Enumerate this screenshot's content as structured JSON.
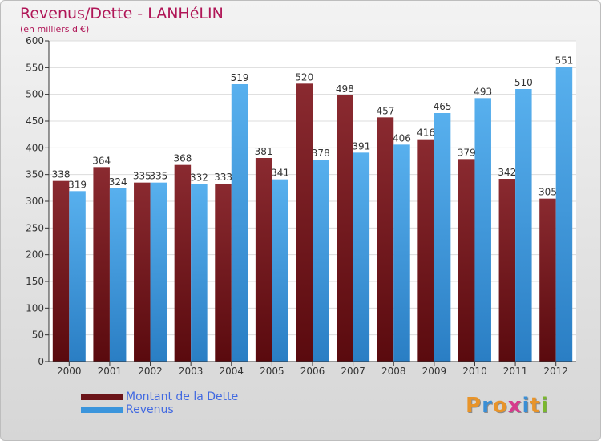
{
  "header": {
    "title": "Revenus/Dette - LANHéLIN",
    "subtitle": "(en milliers d'€)"
  },
  "chart_data": {
    "type": "bar",
    "title": "Revenus/Dette - LANHéLIN",
    "subtitle": "(en milliers d'€)",
    "categories": [
      "2000",
      "2001",
      "2002",
      "2003",
      "2004",
      "2005",
      "2006",
      "2007",
      "2008",
      "2009",
      "2010",
      "2011",
      "2012"
    ],
    "series": [
      {
        "name": "Montant de la Dette",
        "color": "#7a1f24",
        "values": [
          338,
          364,
          335,
          368,
          333,
          381,
          520,
          498,
          457,
          416,
          379,
          342,
          305
        ]
      },
      {
        "name": "Revenus",
        "color": "#3b95dc",
        "values": [
          319,
          324,
          335,
          332,
          519,
          341,
          378,
          391,
          406,
          465,
          493,
          510,
          551
        ]
      }
    ],
    "ylim": [
      0,
      600
    ],
    "yticks": [
      "0",
      "50",
      "100",
      "150",
      "200",
      "250",
      "300",
      "350",
      "400",
      "450",
      "500",
      "550",
      "600"
    ],
    "grid": true,
    "legend_position": "bottom-left",
    "xlabel": "",
    "ylabel": ""
  },
  "legend": {
    "items": [
      {
        "label": "Montant de la Dette",
        "color": "#7a1f24"
      },
      {
        "label": "Revenus",
        "color": "#3b95dc"
      }
    ]
  },
  "logo": {
    "text": "Proxiti",
    "letter_colors": [
      "#e8942a",
      "#3a8fd6",
      "#e8942a",
      "#d63a8c",
      "#3a8fd6",
      "#e8942a",
      "#7ab82e"
    ]
  }
}
